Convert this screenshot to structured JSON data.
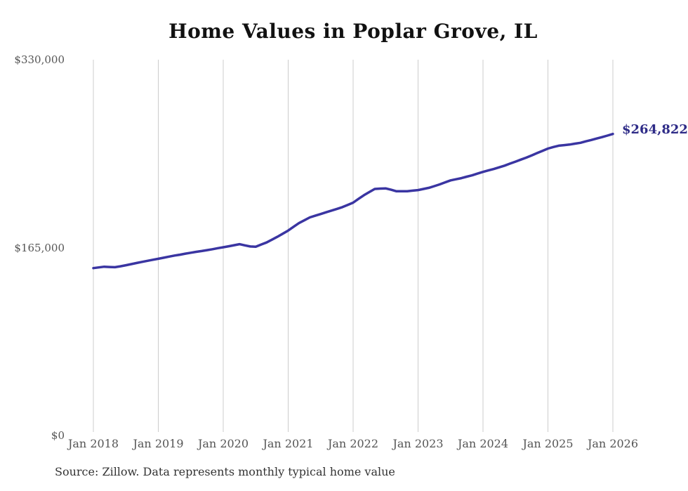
{
  "chart_data": {
    "type": "line",
    "title": "Home Values in Poplar Grove, IL",
    "source_note": "Source: Zillow. Data represents monthly typical home value",
    "end_label": "$264,822",
    "end_value": 264822,
    "xlabel": "",
    "ylabel": "",
    "ylim": [
      0,
      330000
    ],
    "grid": "vertical-only",
    "legend": "none",
    "y_ticks": [
      {
        "value": 0,
        "label": "$0"
      },
      {
        "value": 165000,
        "label": "$165,000"
      },
      {
        "value": 330000,
        "label": "$330,000"
      }
    ],
    "x_tick_labels": [
      "Jan 2018",
      "Jan 2019",
      "Jan 2020",
      "Jan 2021",
      "Jan 2022",
      "Jan 2023",
      "Jan 2024",
      "Jan 2025",
      "Jan 2026"
    ],
    "x": [
      "2018-01",
      "2018-02",
      "2018-03",
      "2018-04",
      "2018-05",
      "2018-06",
      "2018-07",
      "2018-08",
      "2018-09",
      "2018-10",
      "2018-11",
      "2018-12",
      "2019-01",
      "2019-02",
      "2019-03",
      "2019-04",
      "2019-05",
      "2019-06",
      "2019-07",
      "2019-08",
      "2019-09",
      "2019-10",
      "2019-11",
      "2019-12",
      "2020-01",
      "2020-02",
      "2020-03",
      "2020-04",
      "2020-05",
      "2020-06",
      "2020-07",
      "2020-08",
      "2020-09",
      "2020-10",
      "2020-11",
      "2020-12",
      "2021-01",
      "2021-02",
      "2021-03",
      "2021-04",
      "2021-05",
      "2021-06",
      "2021-07",
      "2021-08",
      "2021-09",
      "2021-10",
      "2021-11",
      "2021-12",
      "2022-01",
      "2022-02",
      "2022-03",
      "2022-04",
      "2022-05",
      "2022-06",
      "2022-07",
      "2022-08",
      "2022-09",
      "2022-10",
      "2022-11",
      "2022-12",
      "2023-01",
      "2023-02",
      "2023-03",
      "2023-04",
      "2023-05",
      "2023-06",
      "2023-07",
      "2023-08",
      "2023-09",
      "2023-10",
      "2023-11",
      "2023-12",
      "2024-01",
      "2024-02",
      "2024-03",
      "2024-04",
      "2024-05",
      "2024-06",
      "2024-07",
      "2024-08",
      "2024-09",
      "2024-10",
      "2024-11",
      "2024-12",
      "2025-01",
      "2025-02",
      "2025-03",
      "2025-04",
      "2025-05",
      "2025-06",
      "2025-07",
      "2025-08",
      "2025-09",
      "2025-10",
      "2025-11",
      "2025-12",
      "2026-01"
    ],
    "values": [
      147000,
      147600,
      148200,
      148000,
      147800,
      148600,
      149500,
      150500,
      151500,
      152500,
      153400,
      154300,
      155200,
      156100,
      157100,
      158000,
      158800,
      159700,
      160500,
      161300,
      162000,
      162800,
      163600,
      164500,
      165300,
      166200,
      167100,
      168000,
      167000,
      166000,
      165800,
      167700,
      169500,
      172000,
      174500,
      177200,
      180000,
      183300,
      186500,
      189000,
      191500,
      193000,
      194500,
      196000,
      197500,
      199000,
      200500,
      202500,
      204500,
      207800,
      211000,
      213800,
      216500,
      216800,
      217000,
      215800,
      214500,
      214500,
      214500,
      215000,
      215500,
      216500,
      217500,
      219000,
      220500,
      222300,
      224000,
      225000,
      226000,
      227300,
      228500,
      230000,
      231500,
      232800,
      234000,
      235500,
      237000,
      238800,
      240500,
      242300,
      244000,
      246000,
      248000,
      250000,
      252000,
      253300,
      254500,
      255000,
      255500,
      256300,
      257000,
      258300,
      259500,
      260800,
      262000,
      263400,
      264822
    ],
    "colors": {
      "line": "#3a35a2",
      "end_label": "#2e2b87",
      "gridline": "#cccccc",
      "tick_text": "#555555",
      "title_text": "#111111",
      "source_text": "#333333"
    }
  }
}
